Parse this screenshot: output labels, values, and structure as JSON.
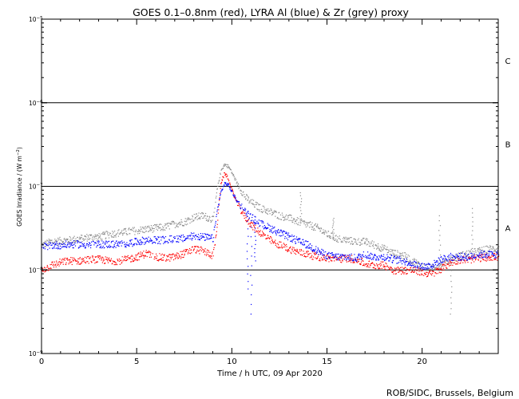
{
  "chart_data": {
    "type": "scatter",
    "title": "GOES 0.1–0.8nm (red), LYRA Al (blue) & Zr (grey) proxy",
    "xlabel": "Time / h UTC, 09 Apr 2020",
    "ylabel_html": "GOES Irradiance / (W m<tspan dy=\"-3\" font-size=\"7\">−2</tspan><tspan dy=\"3\">)</tspan>",
    "ylabel_main": "GOES Irradiance / (W m",
    "ylabel_sup": "−2",
    "ylabel_end": ")",
    "credit": "ROB/SIDC, Brussels, Belgium",
    "xlim": [
      0,
      24
    ],
    "ylim": [
      1e-09,
      1e-05
    ],
    "yscale": "log",
    "x_ticks": [
      0,
      5,
      10,
      15,
      20
    ],
    "y_ticks": [
      {
        "base": "10",
        "exp": "−9",
        "value": 1e-09
      },
      {
        "base": "10",
        "exp": "−8",
        "value": 1e-08
      },
      {
        "base": "10",
        "exp": "−7",
        "value": 1e-07
      },
      {
        "base": "10",
        "exp": "−6",
        "value": 1e-06
      },
      {
        "base": "10",
        "exp": "−5",
        "value": 1e-05
      }
    ],
    "flare_classes": [
      {
        "label": "A",
        "value_mid": 3.2e-08
      },
      {
        "label": "B",
        "value_mid": 3.2e-07
      },
      {
        "label": "C",
        "value_mid": 3.2e-06
      }
    ],
    "reference_lines": [
      1e-08,
      1e-07,
      1e-06
    ],
    "series": [
      {
        "name": "GOES 0.1–0.8nm",
        "color": "#ff0000",
        "points": [
          [
            0,
            1e-08
          ],
          [
            0.5,
            1.15e-08
          ],
          [
            1,
            1.25e-08
          ],
          [
            1.5,
            1.3e-08
          ],
          [
            2,
            1.3e-08
          ],
          [
            2.5,
            1.35e-08
          ],
          [
            3,
            1.35e-08
          ],
          [
            3.5,
            1.3e-08
          ],
          [
            4,
            1.3e-08
          ],
          [
            4.5,
            1.35e-08
          ],
          [
            5,
            1.45e-08
          ],
          [
            5.5,
            1.6e-08
          ],
          [
            6,
            1.45e-08
          ],
          [
            6.5,
            1.4e-08
          ],
          [
            7,
            1.45e-08
          ],
          [
            7.5,
            1.6e-08
          ],
          [
            8,
            1.8e-08
          ],
          [
            8.5,
            1.7e-08
          ],
          [
            9,
            1.5e-08
          ],
          [
            9.2,
            3.2e-08
          ],
          [
            9.4,
            1.1e-07
          ],
          [
            9.6,
            1.45e-07
          ],
          [
            9.8,
            1.25e-07
          ],
          [
            10,
            9e-08
          ],
          [
            10.3,
            6e-08
          ],
          [
            10.7,
            4.3e-08
          ],
          [
            11,
            3.5e-08
          ],
          [
            11.5,
            2.8e-08
          ],
          [
            12,
            2.3e-08
          ],
          [
            12.5,
            2e-08
          ],
          [
            13,
            1.8e-08
          ],
          [
            13.5,
            1.65e-08
          ],
          [
            14,
            1.55e-08
          ],
          [
            14.5,
            1.45e-08
          ],
          [
            15,
            1.4e-08
          ],
          [
            15.5,
            1.35e-08
          ],
          [
            16,
            1.4e-08
          ],
          [
            16.5,
            1.35e-08
          ],
          [
            17,
            1.2e-08
          ],
          [
            17.5,
            1.15e-08
          ],
          [
            18,
            1.15e-08
          ],
          [
            18.5,
            1e-08
          ],
          [
            19,
            1e-08
          ],
          [
            19.5,
            1e-08
          ],
          [
            20,
            9.5e-09
          ],
          [
            20.5,
            9e-09
          ],
          [
            21,
            1.05e-08
          ],
          [
            21.5,
            1.25e-08
          ],
          [
            22,
            1.35e-08
          ],
          [
            22.5,
            1.35e-08
          ],
          [
            23,
            1.4e-08
          ],
          [
            23.5,
            1.45e-08
          ],
          [
            24,
            1.45e-08
          ]
        ]
      },
      {
        "name": "LYRA Al",
        "color": "#0000ff",
        "points": [
          [
            0,
            1.9e-08
          ],
          [
            0.5,
            2e-08
          ],
          [
            1,
            2e-08
          ],
          [
            1.5,
            2.05e-08
          ],
          [
            2,
            2.05e-08
          ],
          [
            2.5,
            2e-08
          ],
          [
            3,
            2.05e-08
          ],
          [
            3.5,
            2.05e-08
          ],
          [
            4,
            2.05e-08
          ],
          [
            4.5,
            2.1e-08
          ],
          [
            5,
            2.2e-08
          ],
          [
            5.5,
            2.3e-08
          ],
          [
            6,
            2.3e-08
          ],
          [
            6.5,
            2.3e-08
          ],
          [
            7,
            2.4e-08
          ],
          [
            7.5,
            2.4e-08
          ],
          [
            8,
            2.6e-08
          ],
          [
            8.5,
            2.5e-08
          ],
          [
            9,
            2.4e-08
          ],
          [
            9.2,
            5e-08
          ],
          [
            9.4,
            8.5e-08
          ],
          [
            9.6,
            1.1e-07
          ],
          [
            9.8,
            1.05e-07
          ],
          [
            10,
            8.5e-08
          ],
          [
            10.3,
            6.5e-08
          ],
          [
            10.7,
            5e-08
          ],
          [
            11,
            4.3e-08
          ],
          [
            11.5,
            3.6e-08
          ],
          [
            12,
            3.2e-08
          ],
          [
            12.5,
            2.8e-08
          ],
          [
            13,
            2.5e-08
          ],
          [
            13.5,
            2.2e-08
          ],
          [
            14,
            2e-08
          ],
          [
            14.5,
            1.7e-08
          ],
          [
            15,
            1.5e-08
          ],
          [
            15.5,
            1.45e-08
          ],
          [
            16,
            1.45e-08
          ],
          [
            16.5,
            1.4e-08
          ],
          [
            17,
            1.55e-08
          ],
          [
            17.5,
            1.45e-08
          ],
          [
            18,
            1.45e-08
          ],
          [
            18.5,
            1.35e-08
          ],
          [
            19,
            1.3e-08
          ],
          [
            19.5,
            1.2e-08
          ],
          [
            20,
            1.1e-08
          ],
          [
            20.5,
            1.15e-08
          ],
          [
            21,
            1.35e-08
          ],
          [
            21.5,
            1.45e-08
          ],
          [
            22,
            1.45e-08
          ],
          [
            22.5,
            1.45e-08
          ],
          [
            23,
            1.55e-08
          ],
          [
            23.5,
            1.55e-08
          ],
          [
            24,
            1.55e-08
          ]
        ],
        "dropouts": [
          [
            10.8,
            6e-09
          ],
          [
            11.0,
            3e-09
          ],
          [
            11.2,
            1.3e-08
          ]
        ]
      },
      {
        "name": "LYRA Zr",
        "color": "#8c8c8c",
        "points": [
          [
            0,
            2e-08
          ],
          [
            0.5,
            2.2e-08
          ],
          [
            1,
            2.25e-08
          ],
          [
            1.5,
            2.3e-08
          ],
          [
            2,
            2.4e-08
          ],
          [
            2.5,
            2.5e-08
          ],
          [
            3,
            2.5e-08
          ],
          [
            3.5,
            2.7e-08
          ],
          [
            4,
            2.8e-08
          ],
          [
            4.5,
            2.9e-08
          ],
          [
            5,
            3e-08
          ],
          [
            5.5,
            3.1e-08
          ],
          [
            6,
            3.2e-08
          ],
          [
            6.5,
            3.3e-08
          ],
          [
            7,
            3.6e-08
          ],
          [
            7.5,
            3.8e-08
          ],
          [
            8,
            4.3e-08
          ],
          [
            8.5,
            4.5e-08
          ],
          [
            9,
            4e-08
          ],
          [
            9.2,
            9e-08
          ],
          [
            9.4,
            1.55e-07
          ],
          [
            9.6,
            1.85e-07
          ],
          [
            9.8,
            1.75e-07
          ],
          [
            10,
            1.45e-07
          ],
          [
            10.3,
            1.05e-07
          ],
          [
            10.7,
            7.5e-08
          ],
          [
            11,
            6.5e-08
          ],
          [
            11.5,
            5.5e-08
          ],
          [
            12,
            5e-08
          ],
          [
            12.5,
            4.5e-08
          ],
          [
            13,
            4.2e-08
          ],
          [
            13.5,
            3.8e-08
          ],
          [
            14,
            3.5e-08
          ],
          [
            14.5,
            3.2e-08
          ],
          [
            15,
            2.7e-08
          ],
          [
            15.5,
            2.4e-08
          ],
          [
            16,
            2.3e-08
          ],
          [
            16.5,
            2.2e-08
          ],
          [
            17,
            2.2e-08
          ],
          [
            17.5,
            2e-08
          ],
          [
            18,
            1.8e-08
          ],
          [
            18.5,
            1.6e-08
          ],
          [
            19,
            1.5e-08
          ],
          [
            19.5,
            1.3e-08
          ],
          [
            20,
            1.1e-08
          ],
          [
            20.5,
            1.05e-08
          ],
          [
            21,
            1.2e-08
          ],
          [
            21.5,
            1.35e-08
          ],
          [
            22,
            1.5e-08
          ],
          [
            22.5,
            1.6e-08
          ],
          [
            23,
            1.7e-08
          ],
          [
            23.5,
            1.8e-08
          ],
          [
            24,
            1.8e-08
          ]
        ],
        "spikes": [
          [
            13.6,
            8.5e-08
          ],
          [
            15.3,
            4.2e-08
          ],
          [
            20.9,
            4.5e-08
          ],
          [
            22.6,
            5.5e-08
          ],
          [
            21.5,
            3e-09
          ]
        ]
      }
    ]
  }
}
